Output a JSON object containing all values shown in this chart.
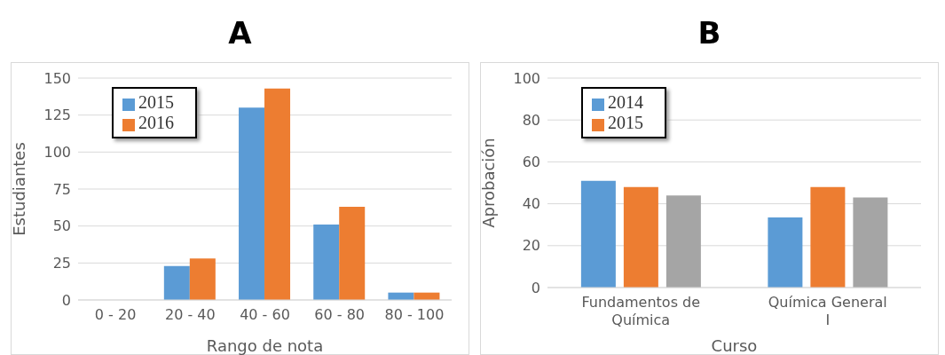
{
  "chart_data": [
    {
      "type": "bar",
      "title": "A",
      "xlabel": "Rango de nota",
      "ylabel": "Estudiantes",
      "categories": [
        "0 - 20",
        "20 - 40",
        "40 - 60",
        "60 - 80",
        "80 - 100"
      ],
      "series": [
        {
          "name": "2015",
          "color": "#5b9bd5",
          "values": [
            0,
            23,
            130,
            51,
            5
          ]
        },
        {
          "name": "2016",
          "color": "#ed7d31",
          "values": [
            0,
            28,
            143,
            63,
            5
          ]
        }
      ],
      "ylim": [
        0,
        150
      ],
      "yticks": [
        0,
        25,
        50,
        75,
        100,
        125,
        150
      ],
      "grid": "y",
      "legend": "top left"
    },
    {
      "type": "bar",
      "title": "B",
      "xlabel": "Curso",
      "ylabel": "Aprobación",
      "categories": [
        "Fundamentos de Química",
        "Química General I"
      ],
      "series": [
        {
          "name": "2014",
          "color": "#5b9bd5",
          "values": [
            51,
            33.5
          ]
        },
        {
          "name": "2015",
          "color": "#ed7d31",
          "values": [
            48,
            48
          ]
        },
        {
          "color": "#a5a5a5",
          "values": [
            44,
            43
          ]
        }
      ],
      "ylim": [
        0,
        100
      ],
      "yticks": [
        0,
        20,
        40,
        60,
        80,
        100
      ],
      "grid": "y",
      "legend": "top left"
    }
  ]
}
